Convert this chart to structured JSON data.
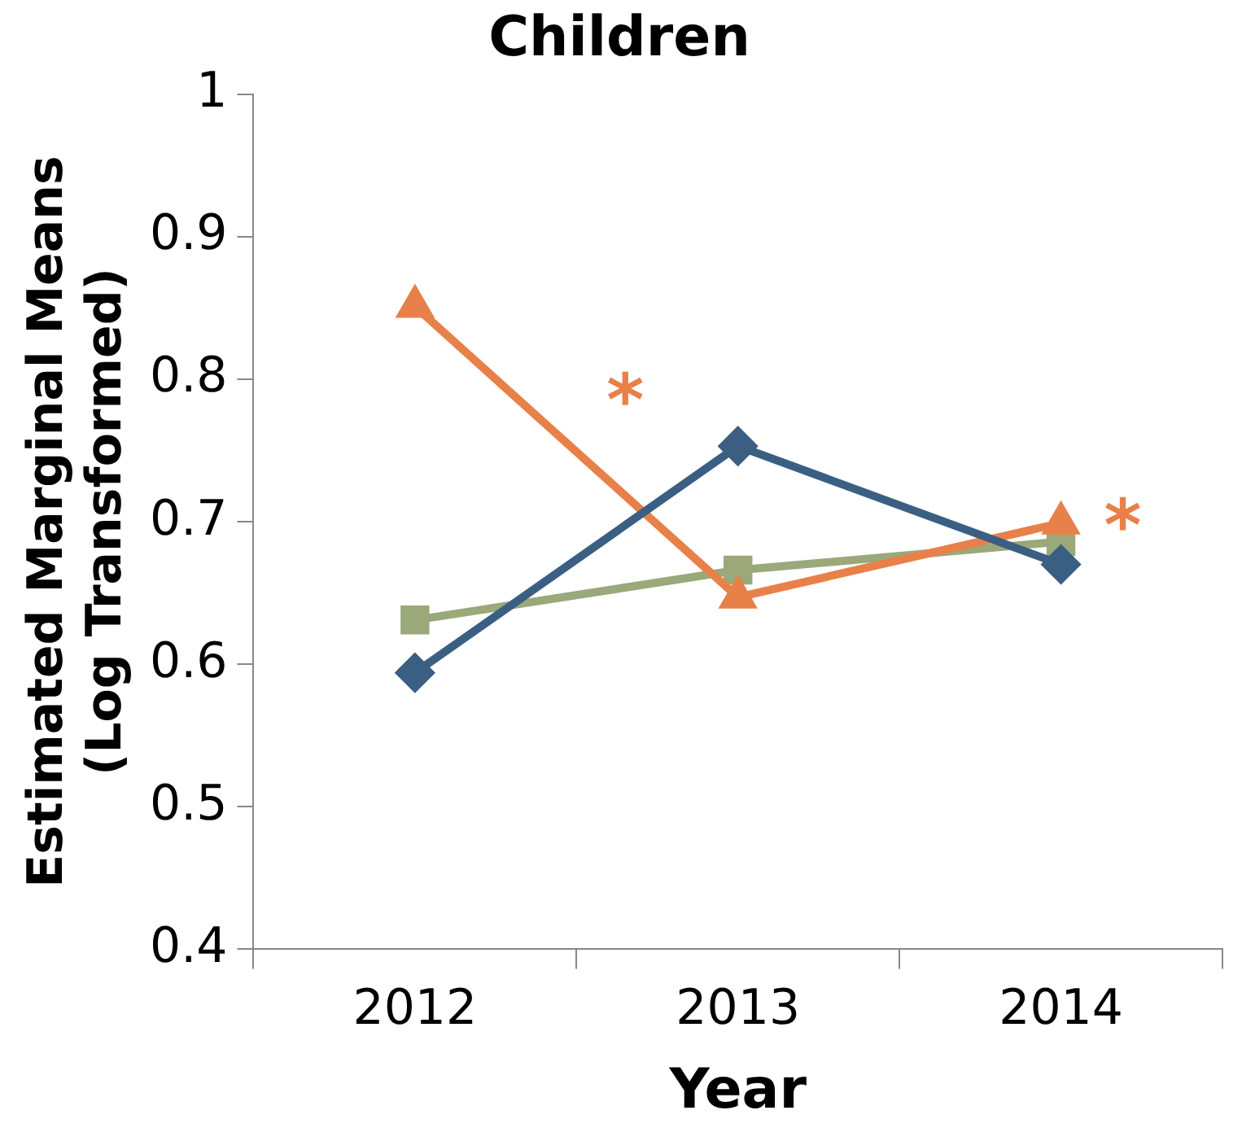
{
  "chart_data": {
    "type": "line",
    "title": "Children",
    "xlabel": "Year",
    "ylabel": "Estimated Marginal Means\n(Log Transformed)",
    "categories": [
      "2012",
      "2013",
      "2014"
    ],
    "series": [
      {
        "color": "#3a5f83",
        "values": [
          0.594,
          0.753,
          0.67
        ],
        "marker": "diamond"
      },
      {
        "color": "#e8804a",
        "values": [
          0.851,
          0.647,
          0.699
        ],
        "marker": "triangle"
      },
      {
        "color": "#9aa87a",
        "values": [
          0.631,
          0.666,
          0.686
        ],
        "marker": "square"
      }
    ],
    "ylim": [
      0.4,
      1
    ],
    "yticks": [
      0.4,
      0.5,
      0.6,
      0.7,
      0.8,
      0.9,
      1
    ],
    "grid": false,
    "legend": false,
    "line_style": "solid",
    "annotations": [
      "*",
      "*"
    ]
  }
}
